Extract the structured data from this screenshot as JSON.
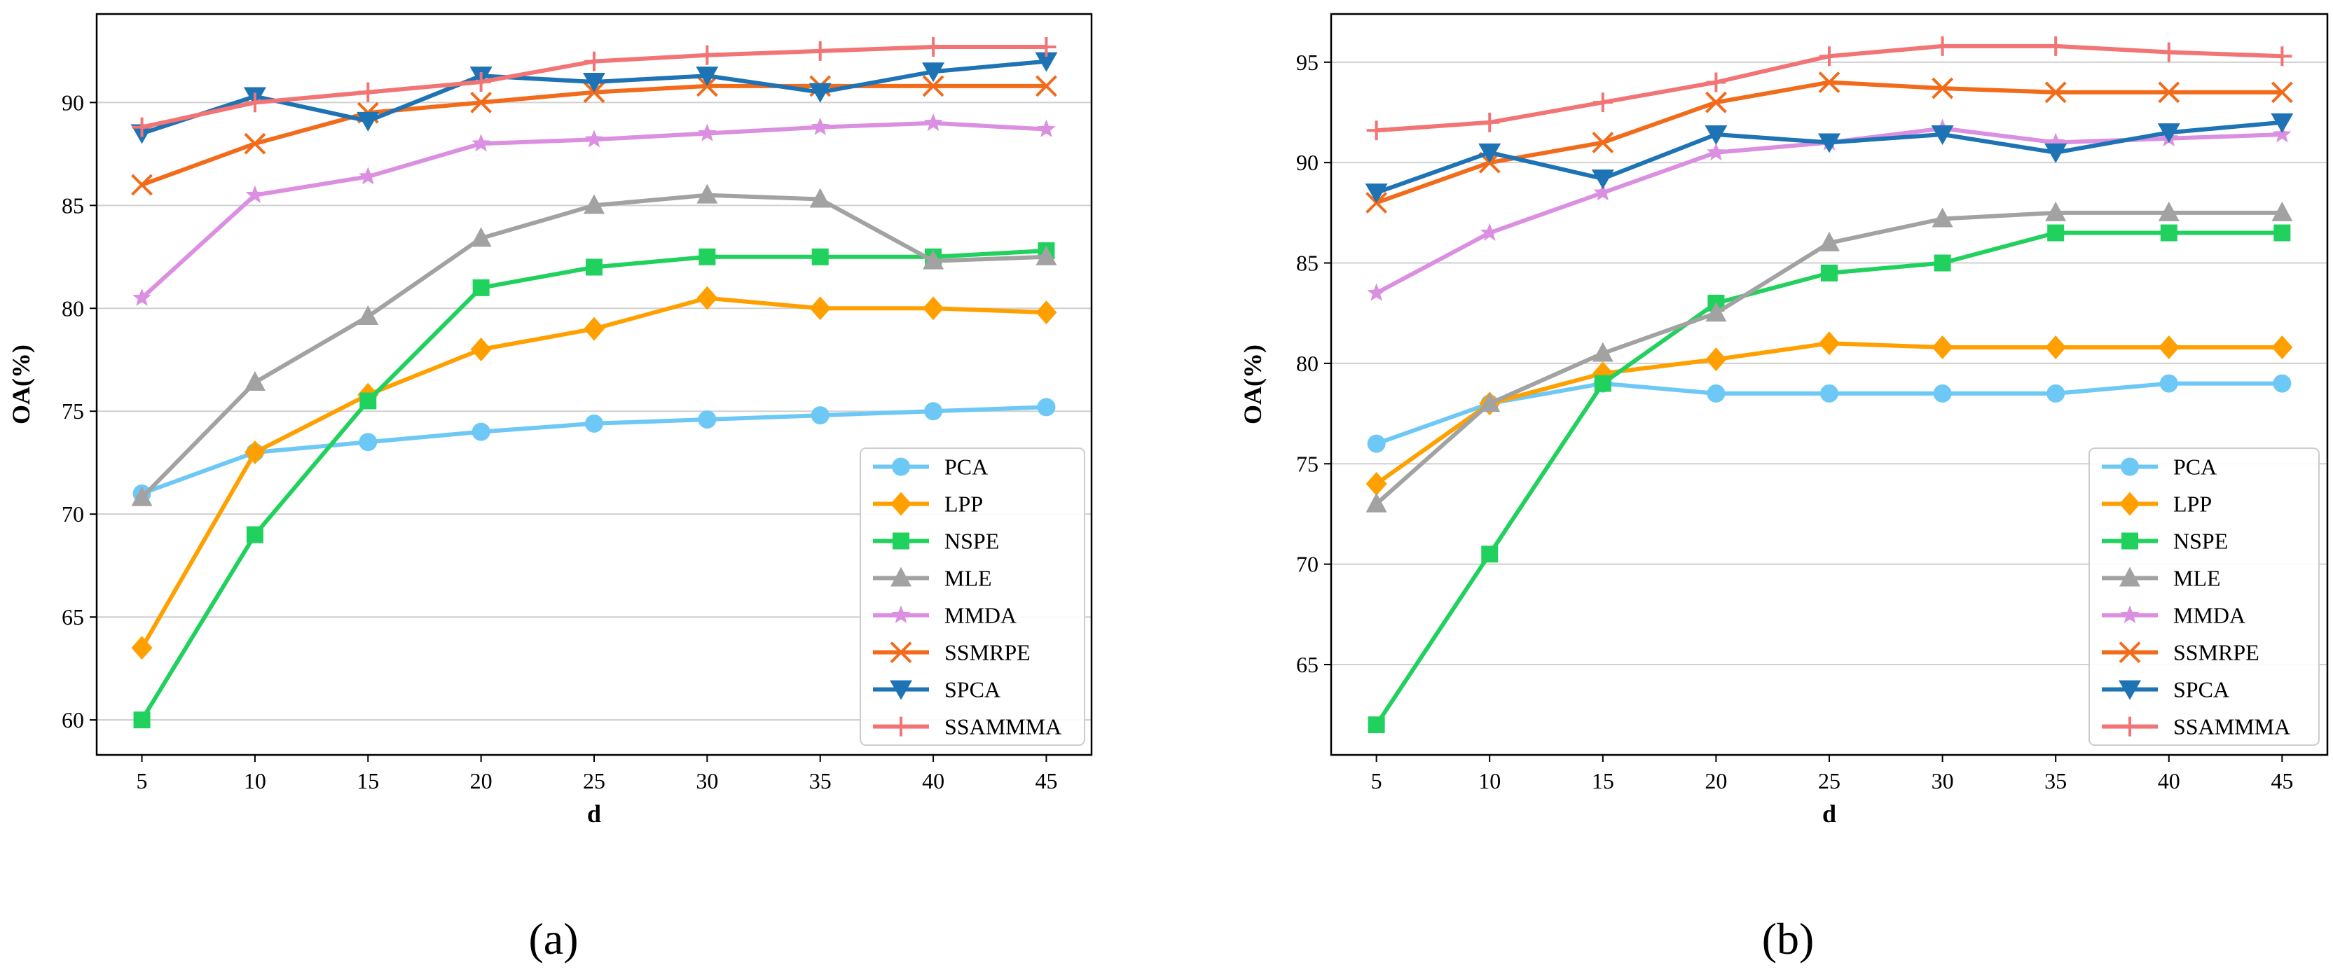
{
  "chart_data": [
    {
      "type": "line",
      "panel_label": "(a)",
      "xlabel": "d",
      "ylabel": "OA(%)",
      "x": [
        5,
        10,
        15,
        20,
        25,
        30,
        35,
        40,
        45
      ],
      "x_ticks": [
        5,
        10,
        15,
        20,
        25,
        30,
        35,
        40,
        45
      ],
      "xlim": [
        3,
        47
      ],
      "ylim": [
        58.3,
        94.3
      ],
      "y_ticks": [
        60,
        65,
        70,
        75,
        80,
        85,
        90
      ],
      "grid": "horizontal",
      "legend_position": "lower-right",
      "series": [
        {
          "name": "PCA",
          "color": "#6EC8F5",
          "marker": "circle",
          "values": [
            71.0,
            73.0,
            73.5,
            74.0,
            74.4,
            74.6,
            74.8,
            75.0,
            75.2
          ]
        },
        {
          "name": "LPP",
          "color": "#FFA000",
          "marker": "diamond",
          "values": [
            63.5,
            73.0,
            75.8,
            78.0,
            79.0,
            80.5,
            80.0,
            80.0,
            79.8
          ]
        },
        {
          "name": "NSPE",
          "color": "#21D15D",
          "marker": "square",
          "values": [
            60.0,
            69.0,
            75.5,
            81.0,
            82.0,
            82.5,
            82.5,
            82.5,
            82.8
          ]
        },
        {
          "name": "MLE",
          "color": "#A2A2A2",
          "marker": "triangle-up",
          "values": [
            70.8,
            76.4,
            79.6,
            83.4,
            85.0,
            85.5,
            85.3,
            82.3,
            82.5
          ]
        },
        {
          "name": "MMDA",
          "color": "#DB8FE0",
          "marker": "star",
          "values": [
            80.5,
            85.5,
            86.4,
            88.0,
            88.2,
            88.5,
            88.8,
            89.0,
            88.7
          ]
        },
        {
          "name": "SSMRPE",
          "color": "#F26B1A",
          "marker": "x",
          "values": [
            86.0,
            88.0,
            89.5,
            90.0,
            90.5,
            90.8,
            90.8,
            90.8,
            90.8
          ]
        },
        {
          "name": "SPCA",
          "color": "#1E73B4",
          "marker": "triangle-down",
          "values": [
            88.5,
            90.3,
            89.1,
            91.3,
            91.0,
            91.3,
            90.5,
            91.5,
            92.0
          ]
        },
        {
          "name": "SSAMMMA",
          "color": "#F27474",
          "marker": "plus",
          "values": [
            88.8,
            90.0,
            90.5,
            91.0,
            92.0,
            92.3,
            92.5,
            92.7,
            92.7
          ]
        }
      ]
    },
    {
      "type": "line",
      "panel_label": "(b)",
      "xlabel": "d",
      "ylabel": "OA(%)",
      "x": [
        5,
        10,
        15,
        20,
        25,
        30,
        35,
        40,
        45
      ],
      "x_ticks": [
        5,
        10,
        15,
        20,
        25,
        30,
        35,
        40,
        45
      ],
      "xlim": [
        3,
        47
      ],
      "ylim": [
        60.5,
        97.4
      ],
      "y_ticks": [
        65,
        70,
        75,
        80,
        85,
        90,
        95
      ],
      "grid": "horizontal",
      "legend_position": "lower-right",
      "series": [
        {
          "name": "PCA",
          "color": "#6EC8F5",
          "marker": "circle",
          "values": [
            76.0,
            78.0,
            79.0,
            78.5,
            78.5,
            78.5,
            78.5,
            79.0,
            79.0
          ]
        },
        {
          "name": "LPP",
          "color": "#FFA000",
          "marker": "diamond",
          "values": [
            74.0,
            78.0,
            79.5,
            80.2,
            81.0,
            80.8,
            80.8,
            80.8,
            80.8
          ]
        },
        {
          "name": "NSPE",
          "color": "#21D15D",
          "marker": "square",
          "values": [
            62.0,
            70.5,
            79.0,
            83.0,
            84.5,
            85.0,
            86.5,
            86.5,
            86.5
          ]
        },
        {
          "name": "MLE",
          "color": "#A2A2A2",
          "marker": "triangle-up",
          "values": [
            73.0,
            78.0,
            80.5,
            82.5,
            86.0,
            87.2,
            87.5,
            87.5,
            87.5
          ]
        },
        {
          "name": "MMDA",
          "color": "#DB8FE0",
          "marker": "star",
          "values": [
            83.5,
            86.5,
            88.5,
            90.5,
            91.0,
            91.7,
            91.0,
            91.2,
            91.4
          ]
        },
        {
          "name": "SSMRPE",
          "color": "#F26B1A",
          "marker": "x",
          "values": [
            88.0,
            90.0,
            91.0,
            93.0,
            94.0,
            93.7,
            93.5,
            93.5,
            93.5
          ]
        },
        {
          "name": "SPCA",
          "color": "#1E73B4",
          "marker": "triangle-down",
          "values": [
            88.5,
            90.5,
            89.2,
            91.4,
            91.0,
            91.4,
            90.5,
            91.5,
            92.0
          ]
        },
        {
          "name": "SSAMMMA",
          "color": "#F27474",
          "marker": "plus",
          "values": [
            91.6,
            92.0,
            93.0,
            94.0,
            95.3,
            95.8,
            95.8,
            95.5,
            95.3
          ]
        }
      ]
    }
  ]
}
